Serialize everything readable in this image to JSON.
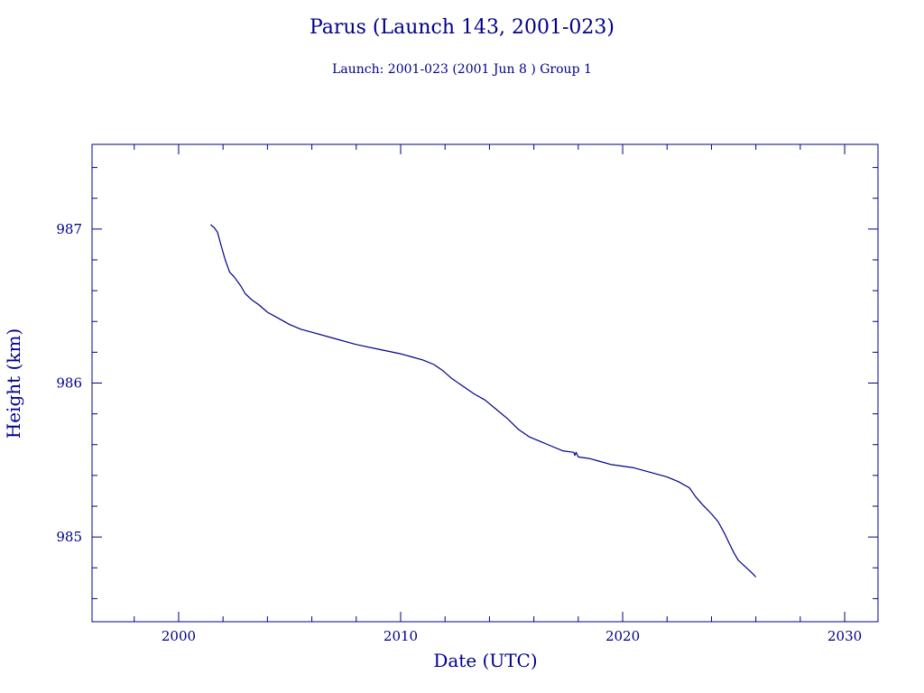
{
  "colors": {
    "ink": "#00008b",
    "background": "#ffffff"
  },
  "chart_data": {
    "type": "line",
    "title": "Parus (Launch 143, 2001-023)",
    "subtitle": "Launch: 2001-023  (2001 Jun  8 )  Group 1",
    "xlabel": "Date (UTC)",
    "ylabel": "Height (km)",
    "xlim": [
      1996.1,
      2031.5
    ],
    "ylim": [
      984.45,
      987.55
    ],
    "x_ticks": [
      2000,
      2010,
      2020,
      2030
    ],
    "x_tick_labels": [
      "2000",
      "2010",
      "2020",
      "2030"
    ],
    "x_minor_step": 2,
    "y_ticks": [
      985,
      986,
      987
    ],
    "y_tick_labels": [
      "985",
      "986",
      "987"
    ],
    "y_minor_step": 0.2,
    "grid": false,
    "legend": "none",
    "series": [
      {
        "x": [
          2001.45,
          2001.5,
          2001.6,
          2001.75,
          2001.9,
          2002.1,
          2002.3,
          2002.5,
          2002.8,
          2003.0,
          2003.3,
          2003.6,
          2004.0,
          2004.5,
          2005.0,
          2005.5,
          2006.0,
          2007.0,
          2008.0,
          2009.0,
          2010.0,
          2010.5,
          2011.0,
          2011.5,
          2011.9,
          2012.3,
          2012.8,
          2013.3,
          2013.8,
          2014.3,
          2014.8,
          2015.3,
          2015.8,
          2016.3,
          2016.8,
          2017.3,
          2017.8,
          2017.85,
          2017.9,
          2018.0,
          2018.5,
          2019.0,
          2019.5,
          2020.0,
          2020.5,
          2021.0,
          2021.5,
          2022.0,
          2022.5,
          2023.0,
          2023.3,
          2023.6,
          2024.0,
          2024.3,
          2024.6,
          2024.8,
          2025.0,
          2025.2,
          2025.5,
          2025.8,
          2026.0
        ],
        "y": [
          987.03,
          987.02,
          987.01,
          986.98,
          986.9,
          986.8,
          986.72,
          986.69,
          986.63,
          986.58,
          986.54,
          986.51,
          986.46,
          986.42,
          986.38,
          986.35,
          986.33,
          986.29,
          986.25,
          986.22,
          986.19,
          986.17,
          986.15,
          986.12,
          986.08,
          986.03,
          985.98,
          985.93,
          985.89,
          985.83,
          985.77,
          985.7,
          985.65,
          985.62,
          985.59,
          985.56,
          985.55,
          985.53,
          985.55,
          985.52,
          985.51,
          985.49,
          985.47,
          985.46,
          985.45,
          985.43,
          985.41,
          985.39,
          985.36,
          985.32,
          985.26,
          985.21,
          985.15,
          985.1,
          985.02,
          984.96,
          984.9,
          984.85,
          984.81,
          984.77,
          984.74
        ]
      }
    ]
  }
}
